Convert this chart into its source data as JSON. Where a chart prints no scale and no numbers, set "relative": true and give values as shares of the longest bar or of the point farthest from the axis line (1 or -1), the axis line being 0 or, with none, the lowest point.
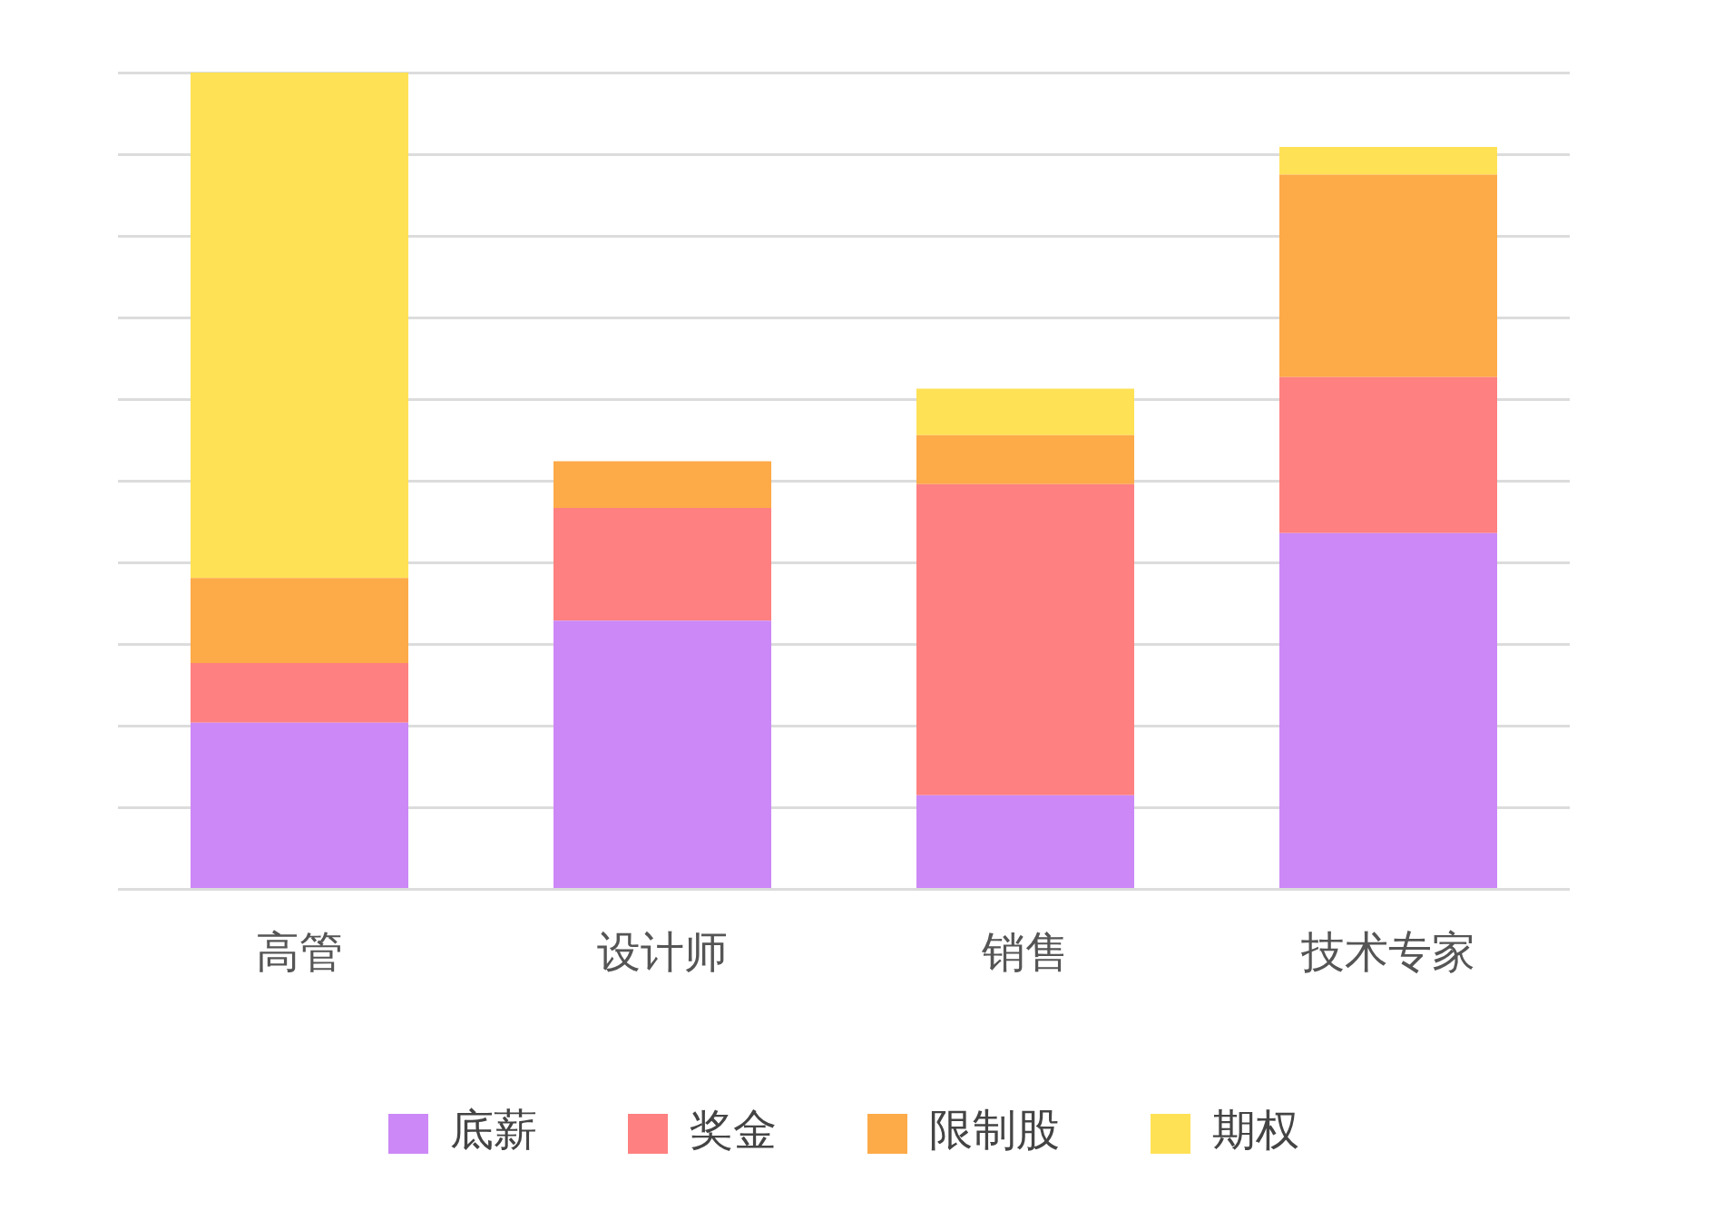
{
  "chart_data": {
    "type": "bar",
    "stacked": true,
    "relative": true,
    "grid": "y",
    "legend": "bottom",
    "categories": [
      "高管",
      "设计师",
      "销售",
      "技术专家"
    ],
    "series": [
      {
        "name": "底薪",
        "color": "#cc88f6",
        "values": [
          0.204,
          0.329,
          0.115,
          0.436
        ]
      },
      {
        "name": "奖金",
        "color": "#ff8080",
        "values": [
          0.073,
          0.138,
          0.381,
          0.191
        ]
      },
      {
        "name": "限制股",
        "color": "#fdaa48",
        "values": [
          0.104,
          0.057,
          0.06,
          0.248
        ]
      },
      {
        "name": "期权",
        "color": "#ffe155",
        "values": [
          0.619,
          0,
          0.057,
          0.034
        ]
      }
    ]
  }
}
